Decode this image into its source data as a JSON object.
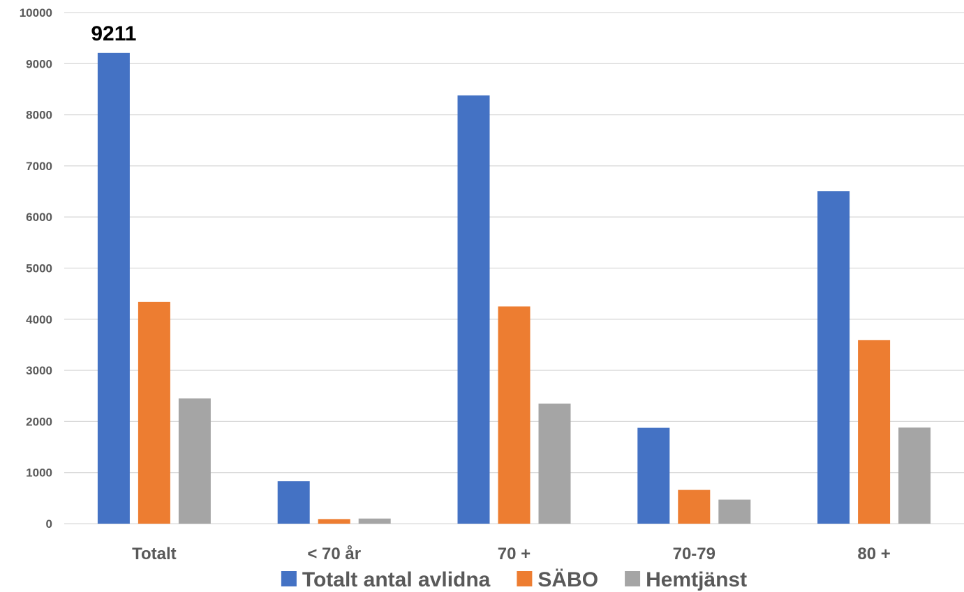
{
  "chart_data": {
    "type": "bar",
    "categories": [
      "Totalt",
      "< 70 år",
      "70 +",
      "70-79",
      "80 +"
    ],
    "series": [
      {
        "name": "Totalt antal avlidna",
        "color": "#4472c4",
        "values": [
          9211,
          830,
          8380,
          1875,
          6505
        ]
      },
      {
        "name": "SÄBO",
        "color": "#ed7d31",
        "values": [
          4340,
          90,
          4250,
          660,
          3590
        ]
      },
      {
        "name": "Hemtjänst",
        "color": "#a5a5a5",
        "values": [
          2450,
          100,
          2350,
          470,
          1880
        ]
      }
    ],
    "ylim": [
      0,
      10000
    ],
    "yticks": [
      0,
      1000,
      2000,
      3000,
      4000,
      5000,
      6000,
      7000,
      8000,
      9000,
      10000
    ],
    "data_labels": [
      {
        "series": 0,
        "category": 0,
        "text": "9211"
      }
    ],
    "grid": true,
    "legend_position": "bottom",
    "title": "",
    "xlabel": "",
    "ylabel": ""
  }
}
